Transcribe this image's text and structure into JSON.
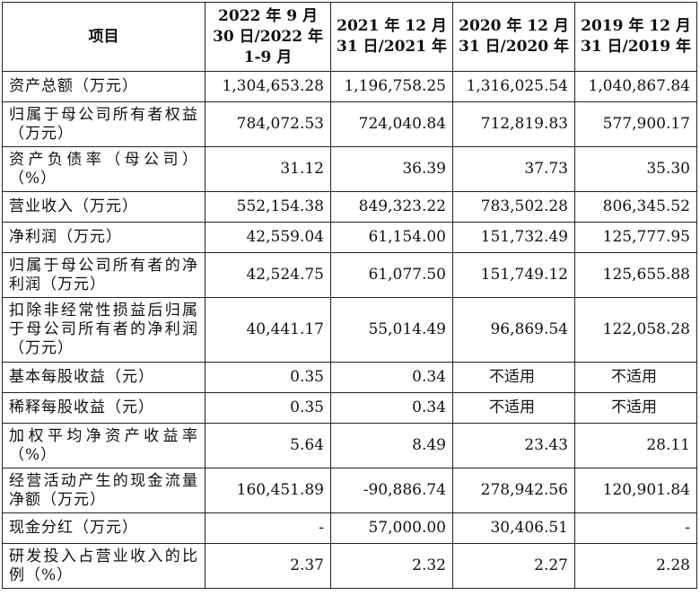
{
  "header": {
    "item": "项目",
    "col1": [
      "2022 年 9 月",
      "30 日/2022 年",
      "1-9 月"
    ],
    "col2": [
      "2021 年 12 月",
      "31 日/2021 年"
    ],
    "col3": [
      "2020 年 12 月",
      "31 日/2020 年"
    ],
    "col4": [
      "2019 年 12 月",
      "31 日/2019 年"
    ]
  },
  "rows": [
    {
      "label": "资产总额（万元）",
      "v": [
        "1,304,653.28",
        "1,196,758.25",
        "1,316,025.54",
        "1,040,867.84"
      ]
    },
    {
      "label": "归属于母公司所有者权益（万元）",
      "v": [
        "784,072.53",
        "724,040.84",
        "712,819.83",
        "577,900.17"
      ]
    },
    {
      "label": "资产负债率（母公司）（%）",
      "v": [
        "31.12",
        "36.39",
        "37.73",
        "35.30"
      ]
    },
    {
      "label": "营业收入（万元）",
      "v": [
        "552,154.38",
        "849,323.22",
        "783,502.28",
        "806,345.52"
      ]
    },
    {
      "label": "净利润（万元）",
      "v": [
        "42,559.04",
        "61,154.00",
        "151,732.49",
        "125,777.95"
      ]
    },
    {
      "label": "归属于母公司所有者的净利润（万元）",
      "v": [
        "42,524.75",
        "61,077.50",
        "151,749.12",
        "125,655.88"
      ]
    },
    {
      "label": "扣除非经常性损益后归属于母公司所有者的净利润（万元）",
      "v": [
        "40,441.17",
        "55,014.49",
        "96,869.54",
        "122,058.28"
      ]
    },
    {
      "label": "基本每股收益（元）",
      "v": [
        "0.35",
        "0.34",
        "不适用",
        "不适用"
      ]
    },
    {
      "label": "稀释每股收益（元）",
      "v": [
        "0.35",
        "0.34",
        "不适用",
        "不适用"
      ]
    },
    {
      "label": "加权平均净资产收益率（%）",
      "v": [
        "5.64",
        "8.49",
        "23.43",
        "28.11"
      ]
    },
    {
      "label": "经营活动产生的现金流量净额（万元）",
      "v": [
        "160,451.89",
        "-90,886.74",
        "278,942.56",
        "120,901.84"
      ]
    },
    {
      "label": "现金分红（万元）",
      "v": [
        "-",
        "57,000.00",
        "30,406.51",
        "-"
      ]
    },
    {
      "label": "研发投入占营业收入的比例（%）",
      "v": [
        "2.37",
        "2.32",
        "2.27",
        "2.28"
      ]
    }
  ]
}
